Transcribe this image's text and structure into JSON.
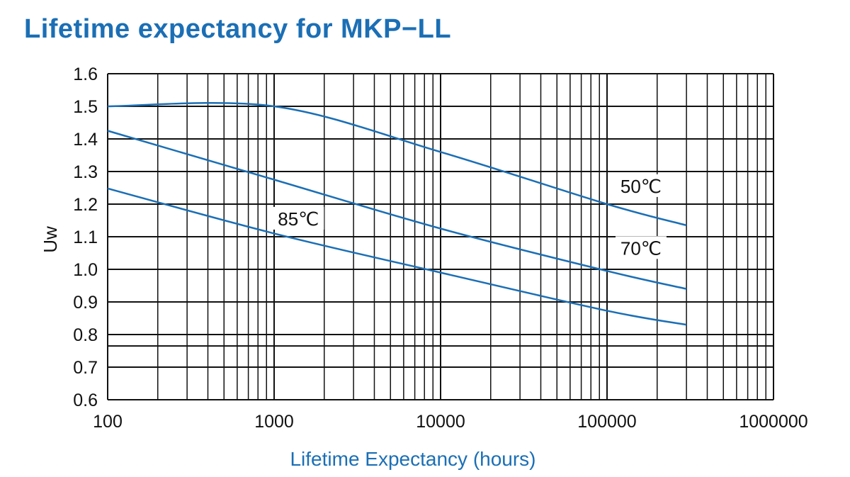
{
  "chart_data": {
    "type": "line",
    "title": "Lifetime expectancy for MKP−LL",
    "xlabel": "Lifetime Expectancy (hours)",
    "ylabel": "Uw",
    "xscale": "log",
    "xlim": [
      100,
      1000000
    ],
    "ylim": [
      0.6,
      1.6
    ],
    "xticks": [
      "100",
      "1000",
      "10000",
      "100000",
      "1000000"
    ],
    "yticks": [
      "1.6",
      "1.5",
      "1.4",
      "1.3",
      "1.2",
      "1.1",
      "1.0",
      "0.9",
      "0.8",
      "0.7",
      "0.6"
    ],
    "extra_hlines": [
      0.765
    ],
    "grid": true,
    "legend": "none",
    "series": [
      {
        "name": "50℃",
        "points": [
          [
            100,
            1.5
          ],
          [
            1000,
            1.5
          ],
          [
            10000,
            1.36
          ],
          [
            100000,
            1.2
          ],
          [
            300000,
            1.135
          ]
        ]
      },
      {
        "name": "70℃",
        "points": [
          [
            100,
            1.425
          ],
          [
            1000,
            1.275
          ],
          [
            10000,
            1.125
          ],
          [
            100000,
            0.995
          ],
          [
            300000,
            0.94
          ]
        ]
      },
      {
        "name": "85℃",
        "points": [
          [
            100,
            1.248
          ],
          [
            1000,
            1.11
          ],
          [
            10000,
            0.99
          ],
          [
            100000,
            0.873
          ],
          [
            300000,
            0.83
          ]
        ]
      }
    ],
    "colors": {
      "title": "#1b6fb5",
      "xlabel": "#1b6fb5",
      "series": "#1b6fb5",
      "grid": "#111111"
    }
  }
}
